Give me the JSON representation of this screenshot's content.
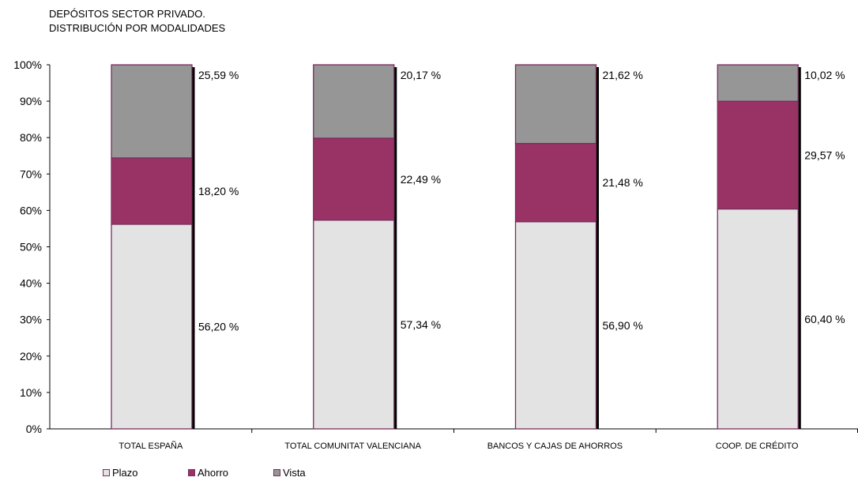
{
  "chart_data": {
    "type": "bar",
    "stacked": true,
    "title": "DEPÓSITOS SECTOR PRIVADO.",
    "subtitle": "DISTRIBUCIÓN POR MODALIDADES",
    "categories": [
      "TOTAL ESPAÑA",
      "TOTAL COMUNITAT VALENCIANA",
      "BANCOS Y CAJAS DE AHORROS",
      "COOP. DE CRÉDITO"
    ],
    "series": [
      {
        "name": "Plazo",
        "values": [
          56.2,
          57.34,
          56.9,
          60.4
        ],
        "labels": [
          "56,20 %",
          "57,34 %",
          "56,90 %",
          "60,40 %"
        ],
        "color": "#e3e3e3"
      },
      {
        "name": "Ahorro",
        "values": [
          18.2,
          22.49,
          21.48,
          29.57
        ],
        "labels": [
          "18,20 %",
          "22,49 %",
          "21,48 %",
          "29,57 %"
        ],
        "color": "#993366"
      },
      {
        "name": "Vista",
        "values": [
          25.59,
          20.17,
          21.62,
          10.02
        ],
        "labels": [
          "25,59 %",
          "20,17 %",
          "21,62 %",
          "10,02 %"
        ],
        "color": "#969696"
      }
    ],
    "y_ticks": [
      "0%",
      "10%",
      "20%",
      "30%",
      "40%",
      "50%",
      "60%",
      "70%",
      "80%",
      "90%",
      "100%"
    ],
    "ylim": [
      0,
      100
    ],
    "grid": false,
    "legend_position": "bottom-left",
    "border_color": "#7b2c5e"
  }
}
